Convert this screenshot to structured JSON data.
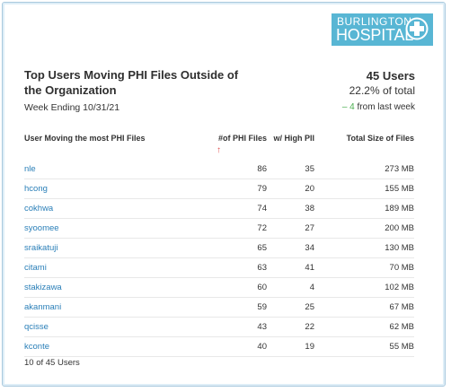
{
  "logo": {
    "line1": "BURLINGTON",
    "line2": "HOSPITAL",
    "icon": "medical-cross-icon",
    "color": "#58b6d4"
  },
  "header": {
    "title": "Top Users Moving PHI Files Outside of the Organization",
    "subtitle": "Week Ending 10/31/21",
    "kpi_main": "45 Users",
    "kpi_pct": "22.2% of total",
    "kpi_delta": "– 4",
    "kpi_delta_suffix": " from last week",
    "delta_color": "#4caf50"
  },
  "table": {
    "columns": {
      "user": "User Moving the most PHI Files",
      "files": "#of PHI Files",
      "pii": "w/ High PII",
      "size": "Total Size of Files"
    },
    "sort_icon": "sort-arrow-up-icon",
    "rows": [
      {
        "user": "nle",
        "files": "86",
        "pii": "35",
        "size": "273 MB"
      },
      {
        "user": "hcong",
        "files": "79",
        "pii": "20",
        "size": "155 MB"
      },
      {
        "user": "cokhwa",
        "files": "74",
        "pii": "38",
        "size": "189 MB"
      },
      {
        "user": "syoomee",
        "files": "72",
        "pii": "27",
        "size": "200 MB"
      },
      {
        "user": "sraikatuji",
        "files": "65",
        "pii": "34",
        "size": "130 MB"
      },
      {
        "user": "citami",
        "files": "63",
        "pii": "41",
        "size": "70 MB"
      },
      {
        "user": "stakizawa",
        "files": "60",
        "pii": "4",
        "size": "102 MB"
      },
      {
        "user": "akanmani",
        "files": "59",
        "pii": "25",
        "size": "67 MB"
      },
      {
        "user": "qcisse",
        "files": "43",
        "pii": "22",
        "size": "62 MB"
      },
      {
        "user": "kconte",
        "files": "40",
        "pii": "19",
        "size": "55 MB"
      }
    ]
  },
  "footer": {
    "count": "10 of 45 Users"
  }
}
